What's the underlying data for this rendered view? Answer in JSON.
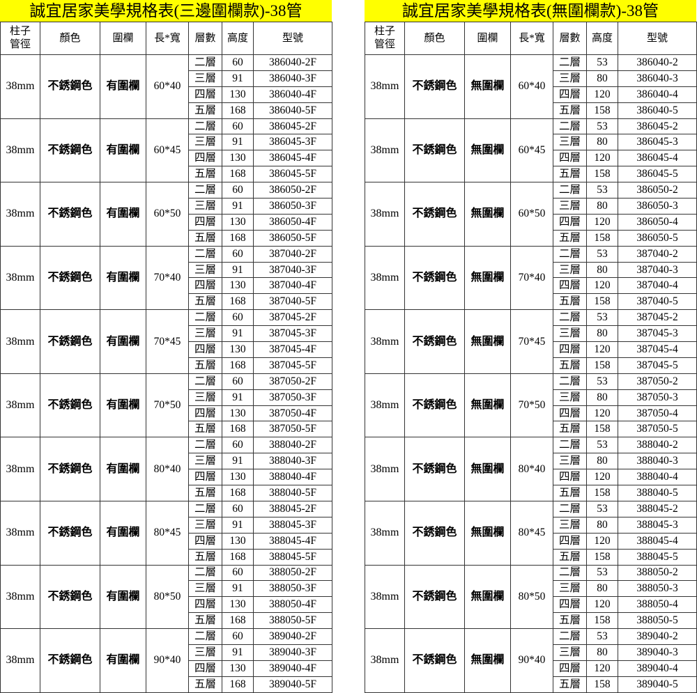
{
  "colors": {
    "title_background": "#ffff00"
  },
  "tables": [
    {
      "title": "誠宜居家美學規格表(三邊圍欄款)-38管",
      "headers": [
        "柱子\n管徑",
        "顏色",
        "圍欄",
        "長*寬",
        "層數",
        "高度",
        "型號"
      ],
      "groups": [
        {
          "diameter": "38mm",
          "color": "不銹鋼色",
          "fence": "有圍欄",
          "size": "60*40",
          "rows": [
            [
              "二層",
              "60",
              "386040-2F"
            ],
            [
              "三層",
              "91",
              "386040-3F"
            ],
            [
              "四層",
              "130",
              "386040-4F"
            ],
            [
              "五層",
              "168",
              "386040-5F"
            ]
          ]
        },
        {
          "diameter": "38mm",
          "color": "不銹鋼色",
          "fence": "有圍欄",
          "size": "60*45",
          "rows": [
            [
              "二層",
              "60",
              "386045-2F"
            ],
            [
              "三層",
              "91",
              "386045-3F"
            ],
            [
              "四層",
              "130",
              "386045-4F"
            ],
            [
              "五層",
              "168",
              "386045-5F"
            ]
          ]
        },
        {
          "diameter": "38mm",
          "color": "不銹鋼色",
          "fence": "有圍欄",
          "size": "60*50",
          "rows": [
            [
              "二層",
              "60",
              "386050-2F"
            ],
            [
              "三層",
              "91",
              "386050-3F"
            ],
            [
              "四層",
              "130",
              "386050-4F"
            ],
            [
              "五層",
              "168",
              "386050-5F"
            ]
          ]
        },
        {
          "diameter": "38mm",
          "color": "不銹鋼色",
          "fence": "有圍欄",
          "size": "70*40",
          "rows": [
            [
              "二層",
              "60",
              "387040-2F"
            ],
            [
              "三層",
              "91",
              "387040-3F"
            ],
            [
              "四層",
              "130",
              "387040-4F"
            ],
            [
              "五層",
              "168",
              "387040-5F"
            ]
          ]
        },
        {
          "diameter": "38mm",
          "color": "不銹鋼色",
          "fence": "有圍欄",
          "size": "70*45",
          "rows": [
            [
              "二層",
              "60",
              "387045-2F"
            ],
            [
              "三層",
              "91",
              "387045-3F"
            ],
            [
              "四層",
              "130",
              "387045-4F"
            ],
            [
              "五層",
              "168",
              "387045-5F"
            ]
          ]
        },
        {
          "diameter": "38mm",
          "color": "不銹鋼色",
          "fence": "有圍欄",
          "size": "70*50",
          "rows": [
            [
              "二層",
              "60",
              "387050-2F"
            ],
            [
              "三層",
              "91",
              "387050-3F"
            ],
            [
              "四層",
              "130",
              "387050-4F"
            ],
            [
              "五層",
              "168",
              "387050-5F"
            ]
          ]
        },
        {
          "diameter": "38mm",
          "color": "不銹鋼色",
          "fence": "有圍欄",
          "size": "80*40",
          "rows": [
            [
              "二層",
              "60",
              "388040-2F"
            ],
            [
              "三層",
              "91",
              "388040-3F"
            ],
            [
              "四層",
              "130",
              "388040-4F"
            ],
            [
              "五層",
              "168",
              "388040-5F"
            ]
          ]
        },
        {
          "diameter": "38mm",
          "color": "不銹鋼色",
          "fence": "有圍欄",
          "size": "80*45",
          "rows": [
            [
              "二層",
              "60",
              "388045-2F"
            ],
            [
              "三層",
              "91",
              "388045-3F"
            ],
            [
              "四層",
              "130",
              "388045-4F"
            ],
            [
              "五層",
              "168",
              "388045-5F"
            ]
          ]
        },
        {
          "diameter": "38mm",
          "color": "不銹鋼色",
          "fence": "有圍欄",
          "size": "80*50",
          "rows": [
            [
              "二層",
              "60",
              "388050-2F"
            ],
            [
              "三層",
              "91",
              "388050-3F"
            ],
            [
              "四層",
              "130",
              "388050-4F"
            ],
            [
              "五層",
              "168",
              "388050-5F"
            ]
          ]
        },
        {
          "diameter": "38mm",
          "color": "不銹鋼色",
          "fence": "有圍欄",
          "size": "90*40",
          "rows": [
            [
              "二層",
              "60",
              "389040-2F"
            ],
            [
              "三層",
              "91",
              "389040-3F"
            ],
            [
              "四層",
              "130",
              "389040-4F"
            ],
            [
              "五層",
              "168",
              "389040-5F"
            ]
          ]
        }
      ]
    },
    {
      "title": "誠宜居家美學規格表(無圍欄款)-38管",
      "headers": [
        "柱子\n管徑",
        "顏色",
        "圍欄",
        "長*寬",
        "層數",
        "高度",
        "型號"
      ],
      "groups": [
        {
          "diameter": "38mm",
          "color": "不銹鋼色",
          "fence": "無圍欄",
          "size": "60*40",
          "rows": [
            [
              "二層",
              "53",
              "386040-2"
            ],
            [
              "三層",
              "80",
              "386040-3"
            ],
            [
              "四層",
              "120",
              "386040-4"
            ],
            [
              "五層",
              "158",
              "386040-5"
            ]
          ]
        },
        {
          "diameter": "38mm",
          "color": "不銹鋼色",
          "fence": "無圍欄",
          "size": "60*45",
          "rows": [
            [
              "二層",
              "53",
              "386045-2"
            ],
            [
              "三層",
              "80",
              "386045-3"
            ],
            [
              "四層",
              "120",
              "386045-4"
            ],
            [
              "五層",
              "158",
              "386045-5"
            ]
          ]
        },
        {
          "diameter": "38mm",
          "color": "不銹鋼色",
          "fence": "無圍欄",
          "size": "60*50",
          "rows": [
            [
              "二層",
              "53",
              "386050-2"
            ],
            [
              "三層",
              "80",
              "386050-3"
            ],
            [
              "四層",
              "120",
              "386050-4"
            ],
            [
              "五層",
              "158",
              "386050-5"
            ]
          ]
        },
        {
          "diameter": "38mm",
          "color": "不銹鋼色",
          "fence": "無圍欄",
          "size": "70*40",
          "rows": [
            [
              "二層",
              "53",
              "387040-2"
            ],
            [
              "三層",
              "80",
              "387040-3"
            ],
            [
              "四層",
              "120",
              "387040-4"
            ],
            [
              "五層",
              "158",
              "387040-5"
            ]
          ]
        },
        {
          "diameter": "38mm",
          "color": "不銹鋼色",
          "fence": "無圍欄",
          "size": "70*45",
          "rows": [
            [
              "二層",
              "53",
              "387045-2"
            ],
            [
              "三層",
              "80",
              "387045-3"
            ],
            [
              "四層",
              "120",
              "387045-4"
            ],
            [
              "五層",
              "158",
              "387045-5"
            ]
          ]
        },
        {
          "diameter": "38mm",
          "color": "不銹鋼色",
          "fence": "無圍欄",
          "size": "70*50",
          "rows": [
            [
              "二層",
              "53",
              "387050-2"
            ],
            [
              "三層",
              "80",
              "387050-3"
            ],
            [
              "四層",
              "120",
              "387050-4"
            ],
            [
              "五層",
              "158",
              "387050-5"
            ]
          ]
        },
        {
          "diameter": "38mm",
          "color": "不銹鋼色",
          "fence": "無圍欄",
          "size": "80*40",
          "rows": [
            [
              "二層",
              "53",
              "388040-2"
            ],
            [
              "三層",
              "80",
              "388040-3"
            ],
            [
              "四層",
              "120",
              "388040-4"
            ],
            [
              "五層",
              "158",
              "388040-5"
            ]
          ]
        },
        {
          "diameter": "38mm",
          "color": "不銹鋼色",
          "fence": "無圍欄",
          "size": "80*45",
          "rows": [
            [
              "二層",
              "53",
              "388045-2"
            ],
            [
              "三層",
              "80",
              "388045-3"
            ],
            [
              "四層",
              "120",
              "388045-4"
            ],
            [
              "五層",
              "158",
              "388045-5"
            ]
          ]
        },
        {
          "diameter": "38mm",
          "color": "不銹鋼色",
          "fence": "無圍欄",
          "size": "80*50",
          "rows": [
            [
              "二層",
              "53",
              "388050-2"
            ],
            [
              "三層",
              "80",
              "388050-3"
            ],
            [
              "四層",
              "120",
              "388050-4"
            ],
            [
              "五層",
              "158",
              "388050-5"
            ]
          ]
        },
        {
          "diameter": "38mm",
          "color": "不銹鋼色",
          "fence": "無圍欄",
          "size": "90*40",
          "rows": [
            [
              "二層",
              "53",
              "389040-2"
            ],
            [
              "三層",
              "80",
              "389040-3"
            ],
            [
              "四層",
              "120",
              "389040-4"
            ],
            [
              "五層",
              "158",
              "389040-5"
            ]
          ]
        }
      ]
    }
  ]
}
